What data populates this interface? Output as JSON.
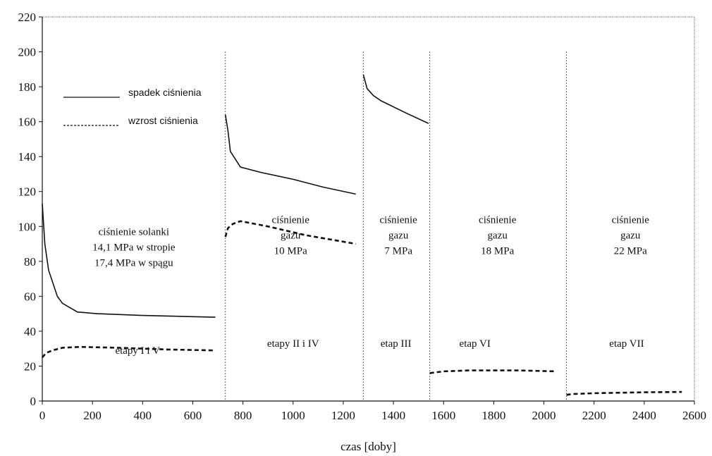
{
  "chart_data": {
    "type": "line",
    "title": "",
    "xlabel": "czas [doby]",
    "ylabel": "",
    "xlim": [
      0,
      2600
    ],
    "ylim": [
      0,
      220
    ],
    "xticks": [
      0,
      200,
      400,
      600,
      800,
      1000,
      1200,
      1400,
      1600,
      1800,
      2000,
      2200,
      2400,
      2600
    ],
    "yticks": [
      0,
      20,
      40,
      60,
      80,
      100,
      120,
      140,
      160,
      180,
      200,
      220
    ],
    "grid": false,
    "stage_boundaries": [
      730,
      1280,
      1545,
      2090
    ],
    "legend": {
      "placement": "top-left",
      "entries": [
        "spadek ciśnienia",
        "wzrost ciśnienia"
      ]
    },
    "series": [
      {
        "name": "spadek ciśnienia",
        "style": "solid",
        "segments": [
          [
            [
              0,
              113
            ],
            [
              10,
              90
            ],
            [
              25,
              75
            ],
            [
              60,
              60
            ],
            [
              80,
              56
            ],
            [
              140,
              51
            ],
            [
              220,
              50
            ],
            [
              400,
              49
            ],
            [
              600,
              48.3
            ],
            [
              690,
              48
            ]
          ],
          [
            [
              730,
              164
            ],
            [
              740,
              155
            ],
            [
              750,
              143
            ],
            [
              790,
              134
            ],
            [
              870,
              131
            ],
            [
              1000,
              127
            ],
            [
              1120,
              122.5
            ],
            [
              1250,
              118.5
            ]
          ],
          [
            [
              1280,
              187
            ],
            [
              1295,
              179
            ],
            [
              1320,
              175
            ],
            [
              1350,
              172
            ],
            [
              1450,
              165
            ],
            [
              1540,
              159
            ]
          ]
        ]
      },
      {
        "name": "wzrost ciśnienia",
        "style": "dashed",
        "segments": [
          [
            [
              0,
              25
            ],
            [
              15,
              27.5
            ],
            [
              40,
              29
            ],
            [
              80,
              30.5
            ],
            [
              150,
              31
            ],
            [
              300,
              30.5
            ],
            [
              500,
              29.5
            ],
            [
              690,
              29
            ]
          ],
          [
            [
              730,
              94
            ],
            [
              740,
              99
            ],
            [
              760,
              101.5
            ],
            [
              790,
              103
            ],
            [
              900,
              100
            ],
            [
              1050,
              95
            ],
            [
              1250,
              90
            ]
          ],
          [
            [
              1545,
              16
            ],
            [
              1600,
              17
            ],
            [
              1700,
              17.5
            ],
            [
              1900,
              17.5
            ],
            [
              2050,
              17
            ]
          ],
          [
            [
              2090,
              3.5
            ],
            [
              2110,
              4
            ],
            [
              2200,
              4.5
            ],
            [
              2400,
              5
            ],
            [
              2550,
              5.2
            ]
          ]
        ]
      }
    ],
    "annotations": [
      {
        "lines": [
          "ciśnienie solanki",
          "14,1 MPa w stropie",
          "17,4 MPa w spągu"
        ],
        "x": 365,
        "y": 95
      },
      {
        "lines": [
          "ciśnienie",
          "gazu",
          "10 MPa"
        ],
        "x": 990,
        "y": 102
      },
      {
        "lines": [
          "ciśnienie",
          "gazu",
          "7 MPa"
        ],
        "x": 1420,
        "y": 102
      },
      {
        "lines": [
          "ciśnienie",
          "gazu",
          "18 MPa"
        ],
        "x": 1815,
        "y": 102
      },
      {
        "lines": [
          "ciśnienie",
          "gazu",
          "22 MPa"
        ],
        "x": 2345,
        "y": 102
      },
      {
        "lines": [
          "etapy I i V"
        ],
        "x": 380,
        "y": 27
      },
      {
        "lines": [
          "etapy II i IV"
        ],
        "x": 1000,
        "y": 31
      },
      {
        "lines": [
          "etap III"
        ],
        "x": 1410,
        "y": 31
      },
      {
        "lines": [
          "etap VI"
        ],
        "x": 1725,
        "y": 31
      },
      {
        "lines": [
          "etap VII"
        ],
        "x": 2330,
        "y": 31
      }
    ]
  }
}
